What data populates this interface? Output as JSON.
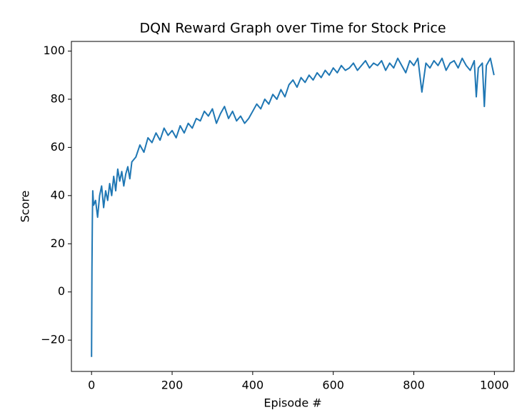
{
  "chart_data": {
    "type": "line",
    "title": "DQN Reward Graph over Time for Stock Price",
    "xlabel": "Episode #",
    "ylabel": "Score",
    "xlim": [
      -50,
      1049
    ],
    "ylim": [
      -33,
      104
    ],
    "xticks": [
      0,
      200,
      400,
      600,
      800,
      1000
    ],
    "yticks": [
      {
        "value": -20,
        "label": "−20"
      },
      0,
      20,
      40,
      60,
      80,
      100
    ],
    "series": [
      {
        "color": "#1f77b4",
        "x": [
          0,
          1,
          2,
          3,
          5,
          10,
          15,
          20,
          25,
          30,
          35,
          40,
          45,
          50,
          55,
          60,
          65,
          70,
          75,
          80,
          85,
          90,
          95,
          100,
          110,
          120,
          130,
          140,
          150,
          160,
          170,
          180,
          190,
          200,
          210,
          220,
          230,
          240,
          250,
          260,
          270,
          280,
          290,
          300,
          310,
          320,
          330,
          340,
          350,
          360,
          370,
          380,
          390,
          400,
          410,
          420,
          430,
          440,
          450,
          460,
          470,
          480,
          490,
          500,
          510,
          520,
          530,
          540,
          550,
          560,
          570,
          580,
          590,
          600,
          610,
          620,
          630,
          640,
          650,
          660,
          670,
          680,
          690,
          700,
          710,
          720,
          730,
          740,
          750,
          760,
          770,
          780,
          790,
          800,
          810,
          820,
          830,
          840,
          850,
          860,
          870,
          880,
          890,
          900,
          910,
          920,
          930,
          940,
          950,
          955,
          960,
          970,
          975,
          980,
          990,
          999
        ],
        "values": [
          -27,
          10,
          30,
          42,
          36,
          38,
          31,
          40,
          44,
          35,
          42,
          38,
          45,
          40,
          48,
          42,
          51,
          46,
          50,
          44,
          49,
          52,
          47,
          54,
          56,
          61,
          58,
          64,
          62,
          66,
          63,
          68,
          65,
          67,
          64,
          69,
          66,
          70,
          68,
          72,
          71,
          75,
          73,
          76,
          70,
          74,
          77,
          72,
          75,
          71,
          73,
          70,
          72,
          75,
          78,
          76,
          80,
          78,
          82,
          80,
          84,
          81,
          86,
          88,
          85,
          89,
          87,
          90,
          88,
          91,
          89,
          92,
          90,
          93,
          91,
          94,
          92,
          93,
          95,
          92,
          94,
          96,
          93,
          95,
          94,
          96,
          92,
          95,
          93,
          97,
          94,
          91,
          96,
          94,
          97,
          83,
          95,
          93,
          96,
          94,
          97,
          92,
          95,
          96,
          93,
          97,
          94,
          92,
          96,
          81,
          93,
          95,
          77,
          94,
          97,
          90
        ]
      }
    ]
  }
}
